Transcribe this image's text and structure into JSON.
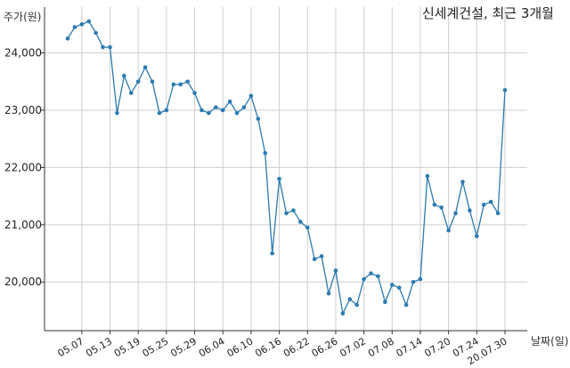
{
  "chart_data": {
    "type": "line",
    "title": "신세계건설, 최근 3개월",
    "ylabel": "주가(원)",
    "xlabel": "날짜(일)",
    "ylim": [
      19150,
      24800
    ],
    "yticks": [
      20000,
      21000,
      22000,
      23000,
      24000
    ],
    "ytick_labels": [
      "20,000",
      "21,000",
      "22,000",
      "23,000",
      "24,000"
    ],
    "xtick_labels": [
      "05.07",
      "05.13",
      "05.19",
      "05.25",
      "05.29",
      "06.04",
      "06.10",
      "06.16",
      "06.22",
      "06.26",
      "07.02",
      "07.08",
      "07.14",
      "07.20",
      "07.24",
      "20.07.30"
    ],
    "xtick_index": [
      2,
      6,
      10,
      14,
      18,
      22,
      26,
      30,
      34,
      38,
      42,
      46,
      50,
      54,
      58,
      62
    ],
    "grid": true,
    "series_color": "#2b7bb0",
    "values": [
      24250,
      24450,
      24500,
      24550,
      24350,
      24100,
      24100,
      22950,
      23600,
      23300,
      23500,
      23750,
      23500,
      22950,
      23000,
      23450,
      23450,
      23500,
      23300,
      23000,
      22950,
      23050,
      23000,
      23150,
      22950,
      23050,
      23250,
      22850,
      22250,
      20500,
      21800,
      21200,
      21250,
      21050,
      20950,
      20400,
      20450,
      19800,
      20200,
      19450,
      19700,
      19600,
      20050,
      20150,
      20100,
      19650,
      19950,
      19900,
      19600,
      20000,
      20050,
      21850,
      21350,
      21300,
      20900,
      21200,
      21750,
      21250,
      20800,
      21350,
      21400,
      21200,
      23350
    ]
  }
}
